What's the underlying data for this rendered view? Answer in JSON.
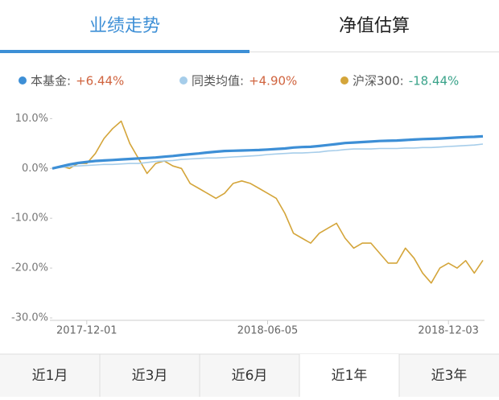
{
  "tabs": [
    "业绩走势",
    "净值估算"
  ],
  "ranges": [
    "近1月",
    "近3月",
    "近6月",
    "近1年",
    "近3年"
  ],
  "chart_data": {
    "type": "line",
    "categories": [
      null,
      null,
      null,
      null,
      "2017-12-01",
      null,
      null,
      null,
      null,
      null,
      null,
      null,
      null,
      null,
      null,
      null,
      null,
      null,
      null,
      null,
      null,
      null,
      null,
      null,
      null,
      "2018-06-05",
      null,
      null,
      null,
      null,
      null,
      null,
      null,
      null,
      null,
      null,
      null,
      null,
      null,
      null,
      null,
      null,
      null,
      null,
      null,
      null,
      "2018-12-03",
      null,
      null,
      null,
      null
    ],
    "series": [
      {
        "name": "本基金:",
        "end_label": "+6.44%",
        "label_color": "#d0643f",
        "color": "#3d8fd6",
        "width": 3.2,
        "values": [
          0,
          0.4,
          0.8,
          1.1,
          1.3,
          1.5,
          1.6,
          1.7,
          1.8,
          1.9,
          2.0,
          2.1,
          2.2,
          2.35,
          2.5,
          2.7,
          2.85,
          3.0,
          3.2,
          3.35,
          3.5,
          3.55,
          3.6,
          3.65,
          3.7,
          3.8,
          3.9,
          4.0,
          4.2,
          4.3,
          4.35,
          4.5,
          4.7,
          4.9,
          5.1,
          5.2,
          5.3,
          5.4,
          5.5,
          5.55,
          5.6,
          5.7,
          5.8,
          5.9,
          5.95,
          6.0,
          6.1,
          6.2,
          6.3,
          6.35,
          6.44
        ]
      },
      {
        "name": "同类均值:",
        "end_label": "+4.90%",
        "label_color": "#d0643f",
        "color": "#a6cdea",
        "width": 1.6,
        "values": [
          0,
          0.2,
          0.4,
          0.5,
          0.6,
          0.7,
          0.8,
          0.8,
          0.9,
          1.0,
          1.0,
          1.2,
          1.4,
          1.5,
          1.6,
          1.8,
          1.9,
          2.0,
          2.1,
          2.1,
          2.2,
          2.3,
          2.4,
          2.5,
          2.6,
          2.8,
          2.9,
          3.0,
          3.1,
          3.1,
          3.2,
          3.3,
          3.5,
          3.6,
          3.8,
          3.9,
          3.9,
          3.9,
          4.0,
          4.0,
          4.0,
          4.1,
          4.1,
          4.2,
          4.2,
          4.3,
          4.4,
          4.5,
          4.6,
          4.7,
          4.9
        ]
      },
      {
        "name": "沪深300:",
        "end_label": "-18.44%",
        "label_color": "#3aa38a",
        "color": "#d4a53a",
        "width": 1.6,
        "values": [
          0,
          0.5,
          0,
          1,
          1,
          3,
          6,
          8,
          9.5,
          5,
          2,
          -1,
          1,
          1.5,
          0.5,
          0,
          -3,
          -4,
          -5,
          -6,
          -5,
          -3,
          -2.5,
          -3,
          -4,
          -5,
          -6,
          -9,
          -13,
          -14,
          -15,
          -13,
          -12,
          -11,
          -14,
          -16,
          -15,
          -15,
          -17,
          -19,
          -19,
          -16,
          -18,
          -21,
          -23,
          -20,
          -19,
          -20,
          -18.5,
          -21,
          -18.44
        ]
      }
    ],
    "ylim": [
      -30,
      12
    ],
    "yticks": [
      {
        "value": 10,
        "label": "10.0%"
      },
      {
        "value": 0,
        "label": "0.0%"
      },
      {
        "value": -10,
        "label": "-10.0%"
      },
      {
        "value": -20,
        "label": "-20.0%"
      },
      {
        "value": -30,
        "label": "-30.0%"
      }
    ]
  }
}
